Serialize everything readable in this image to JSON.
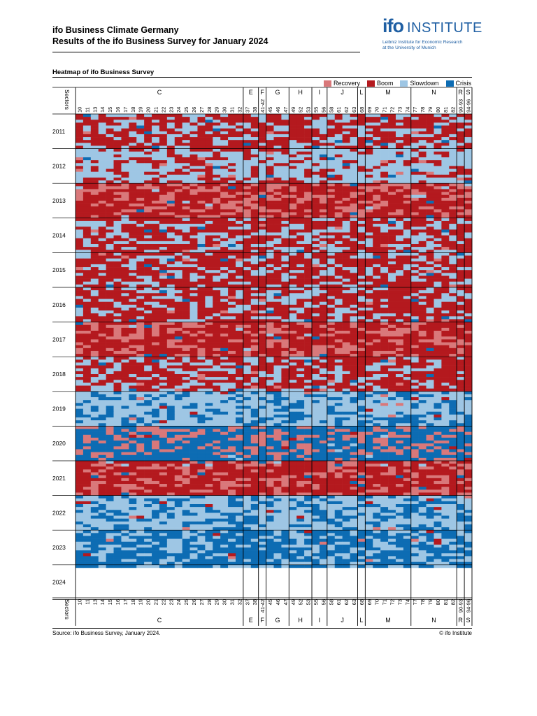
{
  "header": {
    "title_line1": "ifo Business Climate Germany",
    "title_line2": "Results of the ifo Business Survey for January 2024"
  },
  "logo": {
    "ifo": "ifo",
    "institute": "INSTITUTE",
    "sub_line1": "Leibniz Institute for Economic Research",
    "sub_line2": "at the University of Munich",
    "color": "#1f5fa3"
  },
  "footer": {
    "source": "Source: ifo Business Survey, January 2024.",
    "copyright": "© ifo Institute"
  },
  "chart_data": {
    "type": "heatmap",
    "title": "Heatmap of ifo Business Survey",
    "row_axis_label": "Sectors",
    "legend": [
      {
        "label": "Recovery",
        "color": "#d9787a"
      },
      {
        "label": "Boom",
        "color": "#b4191e"
      },
      {
        "label": "Slowdown",
        "color": "#9ec6e4"
      },
      {
        "label": "Crisis",
        "color": "#0d6cb3"
      }
    ],
    "sector_codes": [
      "10",
      "11",
      "13",
      "14",
      "15",
      "16",
      "17",
      "18",
      "19",
      "20",
      "21",
      "22",
      "23",
      "24",
      "25",
      "26",
      "27",
      "28",
      "29",
      "30",
      "31",
      "32",
      "37",
      "38",
      "41-42",
      "45",
      "46",
      "47",
      "49",
      "52",
      "53",
      "55",
      "56",
      "58",
      "61",
      "62",
      "63",
      "68",
      "69",
      "70",
      "71",
      "72",
      "73",
      "74",
      "77",
      "78",
      "79",
      "80",
      "81",
      "82",
      "90-93",
      "94-96"
    ],
    "sector_groups": [
      {
        "label": "C",
        "count": 22
      },
      {
        "label": "E",
        "count": 2
      },
      {
        "label": "F",
        "count": 1
      },
      {
        "label": "G",
        "count": 3
      },
      {
        "label": "H",
        "count": 3
      },
      {
        "label": "I",
        "count": 2
      },
      {
        "label": "J",
        "count": 4
      },
      {
        "label": "L",
        "count": 1
      },
      {
        "label": "M",
        "count": 6
      },
      {
        "label": "N",
        "count": 6
      },
      {
        "label": "R",
        "count": 1
      },
      {
        "label": "S",
        "count": 1
      }
    ],
    "years": [
      "2011",
      "2012",
      "2013",
      "2014",
      "2015",
      "2016",
      "2017",
      "2018",
      "2019",
      "2020",
      "2021",
      "2022",
      "2023",
      "2024"
    ],
    "months_per_year": 12,
    "months_with_data": 157,
    "phase_by_year": [
      {
        "year": "2011",
        "dominant": "Boom",
        "secondary": "Slowdown"
      },
      {
        "year": "2012",
        "dominant": "Slowdown",
        "secondary": "Boom"
      },
      {
        "year": "2013",
        "dominant": "Boom",
        "secondary": "Recovery"
      },
      {
        "year": "2014",
        "dominant": "Boom",
        "secondary": "Slowdown"
      },
      {
        "year": "2015",
        "dominant": "Boom",
        "secondary": "Slowdown"
      },
      {
        "year": "2016",
        "dominant": "Boom",
        "secondary": "Slowdown"
      },
      {
        "year": "2017",
        "dominant": "Boom",
        "secondary": "Recovery"
      },
      {
        "year": "2018",
        "dominant": "Boom",
        "secondary": "Slowdown"
      },
      {
        "year": "2019",
        "dominant": "Slowdown",
        "secondary": "Crisis"
      },
      {
        "year": "2020",
        "dominant": "Crisis",
        "secondary": "Recovery"
      },
      {
        "year": "2021",
        "dominant": "Boom",
        "secondary": "Recovery"
      },
      {
        "year": "2022",
        "dominant": "Slowdown",
        "secondary": "Crisis"
      },
      {
        "year": "2023",
        "dominant": "Crisis",
        "secondary": "Slowdown"
      },
      {
        "year": "2024",
        "dominant": "Crisis",
        "secondary": "Slowdown"
      }
    ]
  }
}
